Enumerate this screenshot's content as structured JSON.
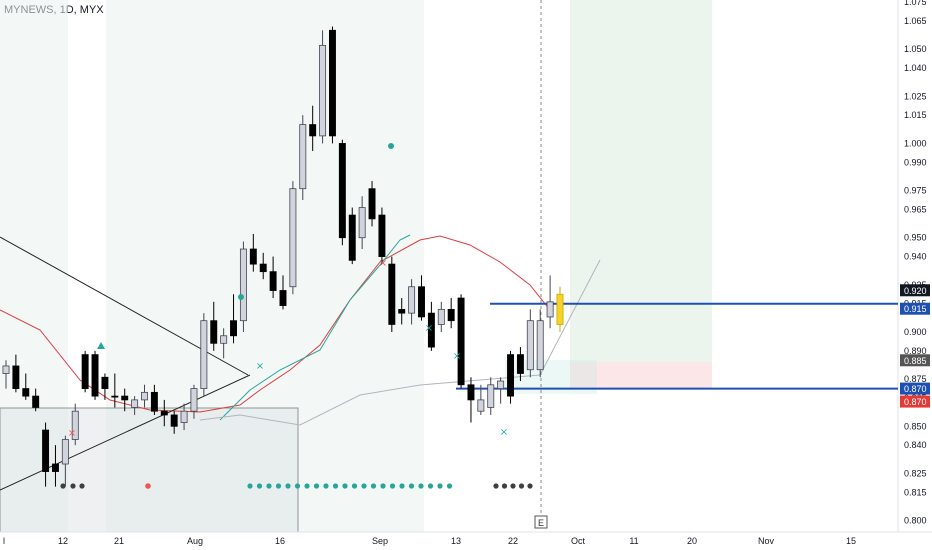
{
  "header": {
    "title": "MYNEWS, 1D, MYX"
  },
  "colors": {
    "up": "#d1d4dc",
    "up_border": "#434651",
    "down": "#000000",
    "highlight": "#f5d327",
    "level_line": "#1e50b4",
    "ema_red": "#e03c3c",
    "ema_teal": "#26a69a",
    "ma_grey": "#b2b5be",
    "teal_dot": "#26a69a",
    "red_dot": "#f05454",
    "dark_dot": "#3f3f3f",
    "grid_band": "#e9f3f1"
  },
  "chart_data": {
    "type": "candlestick",
    "title": "MYNEWS, 1D, MYX",
    "ylim": [
      0.795,
      1.075
    ],
    "y_ticks": [
      "1.075",
      "1.065",
      "1.050",
      "1.040",
      "1.025",
      "1.015",
      "1.000",
      "0.990",
      "0.975",
      "0.965",
      "0.950",
      "0.940",
      "0.925",
      "0.915",
      "0.900",
      "0.890",
      "0.875",
      "0.865",
      "0.850",
      "0.840",
      "0.825",
      "0.815",
      "0.800"
    ],
    "x_ticks": [
      "l",
      "12",
      "21",
      "Aug",
      "16",
      "Sep",
      "13",
      "22",
      "Oct",
      "11",
      "20",
      "Nov",
      "15"
    ],
    "price_labels": [
      {
        "value": 0.92,
        "text": "0.920",
        "style": "dark"
      },
      {
        "value": 0.915,
        "text": "0.915",
        "style": "blue"
      },
      {
        "value": 0.885,
        "text": "0.885",
        "style": "grey"
      },
      {
        "value": 0.87,
        "text": "0.870",
        "style": "blue"
      },
      {
        "value": 0.87,
        "text": "0.870",
        "style": "red"
      }
    ],
    "levels": [
      0.915,
      0.87
    ],
    "event_marker": "E",
    "candles": [
      {
        "o": 0.878,
        "h": 0.885,
        "l": 0.87,
        "c": 0.882,
        "up": true
      },
      {
        "o": 0.882,
        "h": 0.888,
        "l": 0.868,
        "c": 0.87,
        "up": false
      },
      {
        "o": 0.87,
        "h": 0.878,
        "l": 0.864,
        "c": 0.866,
        "up": false
      },
      {
        "o": 0.866,
        "h": 0.87,
        "l": 0.858,
        "c": 0.86,
        "up": false
      },
      {
        "o": 0.848,
        "h": 0.852,
        "l": 0.818,
        "c": 0.826,
        "up": false
      },
      {
        "o": 0.826,
        "h": 0.84,
        "l": 0.818,
        "c": 0.83,
        "up": false
      },
      {
        "o": 0.83,
        "h": 0.845,
        "l": 0.818,
        "c": 0.843,
        "up": true
      },
      {
        "o": 0.843,
        "h": 0.862,
        "l": 0.84,
        "c": 0.858,
        "up": true
      },
      {
        "o": 0.888,
        "h": 0.89,
        "l": 0.868,
        "c": 0.87,
        "up": false
      },
      {
        "o": 0.888,
        "h": 0.89,
        "l": 0.864,
        "c": 0.866,
        "up": false
      },
      {
        "o": 0.87,
        "h": 0.878,
        "l": 0.864,
        "c": 0.876,
        "up": false
      },
      {
        "o": 0.866,
        "h": 0.878,
        "l": 0.86,
        "c": 0.866,
        "up": false
      },
      {
        "o": 0.866,
        "h": 0.87,
        "l": 0.858,
        "c": 0.864,
        "up": false
      },
      {
        "o": 0.86,
        "h": 0.866,
        "l": 0.856,
        "c": 0.864,
        "up": true
      },
      {
        "o": 0.864,
        "h": 0.872,
        "l": 0.86,
        "c": 0.868,
        "up": true
      },
      {
        "o": 0.868,
        "h": 0.872,
        "l": 0.856,
        "c": 0.858,
        "up": false
      },
      {
        "o": 0.858,
        "h": 0.864,
        "l": 0.85,
        "c": 0.856,
        "up": false
      },
      {
        "o": 0.856,
        "h": 0.858,
        "l": 0.846,
        "c": 0.85,
        "up": false
      },
      {
        "o": 0.852,
        "h": 0.862,
        "l": 0.848,
        "c": 0.858,
        "up": true
      },
      {
        "o": 0.858,
        "h": 0.872,
        "l": 0.854,
        "c": 0.87,
        "up": true
      },
      {
        "o": 0.87,
        "h": 0.91,
        "l": 0.866,
        "c": 0.906,
        "up": true
      },
      {
        "o": 0.906,
        "h": 0.916,
        "l": 0.89,
        "c": 0.894,
        "up": false
      },
      {
        "o": 0.894,
        "h": 0.902,
        "l": 0.886,
        "c": 0.898,
        "up": true
      },
      {
        "o": 0.898,
        "h": 0.92,
        "l": 0.894,
        "c": 0.906,
        "up": false
      },
      {
        "o": 0.906,
        "h": 0.948,
        "l": 0.9,
        "c": 0.944,
        "up": true
      },
      {
        "o": 0.944,
        "h": 0.952,
        "l": 0.932,
        "c": 0.936,
        "up": false
      },
      {
        "o": 0.936,
        "h": 0.942,
        "l": 0.928,
        "c": 0.932,
        "up": false
      },
      {
        "o": 0.932,
        "h": 0.94,
        "l": 0.918,
        "c": 0.922,
        "up": false
      },
      {
        "o": 0.922,
        "h": 0.93,
        "l": 0.912,
        "c": 0.914,
        "up": false
      },
      {
        "o": 0.924,
        "h": 0.98,
        "l": 0.92,
        "c": 0.976,
        "up": true
      },
      {
        "o": 0.976,
        "h": 1.015,
        "l": 0.97,
        "c": 1.01,
        "up": true
      },
      {
        "o": 1.01,
        "h": 1.02,
        "l": 0.996,
        "c": 1.004,
        "up": false
      },
      {
        "o": 1.004,
        "h": 1.06,
        "l": 1.0,
        "c": 1.052,
        "up": true
      },
      {
        "o": 1.06,
        "h": 1.062,
        "l": 1.0,
        "c": 1.004,
        "up": false
      },
      {
        "o": 1.0,
        "h": 1.002,
        "l": 0.946,
        "c": 0.95,
        "up": false
      },
      {
        "o": 0.962,
        "h": 0.966,
        "l": 0.936,
        "c": 0.938,
        "up": false
      },
      {
        "o": 0.95,
        "h": 0.972,
        "l": 0.944,
        "c": 0.966,
        "up": true
      },
      {
        "o": 0.976,
        "h": 0.98,
        "l": 0.956,
        "c": 0.96,
        "up": false
      },
      {
        "o": 0.962,
        "h": 0.966,
        "l": 0.936,
        "c": 0.94,
        "up": false
      },
      {
        "o": 0.936,
        "h": 0.94,
        "l": 0.9,
        "c": 0.904,
        "up": false
      },
      {
        "o": 0.912,
        "h": 0.918,
        "l": 0.904,
        "c": 0.91,
        "up": false
      },
      {
        "o": 0.91,
        "h": 0.928,
        "l": 0.904,
        "c": 0.924,
        "up": true
      },
      {
        "o": 0.924,
        "h": 0.93,
        "l": 0.906,
        "c": 0.908,
        "up": false
      },
      {
        "o": 0.91,
        "h": 0.916,
        "l": 0.89,
        "c": 0.892,
        "up": false
      },
      {
        "o": 0.904,
        "h": 0.916,
        "l": 0.9,
        "c": 0.912,
        "up": true
      },
      {
        "o": 0.912,
        "h": 0.918,
        "l": 0.902,
        "c": 0.906,
        "up": false
      },
      {
        "o": 0.918,
        "h": 0.92,
        "l": 0.87,
        "c": 0.872,
        "up": false
      },
      {
        "o": 0.872,
        "h": 0.876,
        "l": 0.852,
        "c": 0.864,
        "up": false
      },
      {
        "o": 0.864,
        "h": 0.872,
        "l": 0.856,
        "c": 0.858,
        "up": true
      },
      {
        "o": 0.86,
        "h": 0.876,
        "l": 0.856,
        "c": 0.872,
        "up": true
      },
      {
        "o": 0.87,
        "h": 0.876,
        "l": 0.862,
        "c": 0.874,
        "up": true
      },
      {
        "o": 0.888,
        "h": 0.89,
        "l": 0.862,
        "c": 0.866,
        "up": false
      },
      {
        "o": 0.888,
        "h": 0.892,
        "l": 0.874,
        "c": 0.878,
        "up": false
      },
      {
        "o": 0.88,
        "h": 0.912,
        "l": 0.876,
        "c": 0.906,
        "up": true
      },
      {
        "o": 0.88,
        "h": 0.912,
        "l": 0.876,
        "c": 0.906,
        "up": true
      },
      {
        "o": 0.908,
        "h": 0.93,
        "l": 0.902,
        "c": 0.916,
        "up": true
      },
      {
        "o": 0.904,
        "h": 0.924,
        "l": 0.9,
        "c": 0.92,
        "up": true,
        "highlight": true
      }
    ]
  }
}
